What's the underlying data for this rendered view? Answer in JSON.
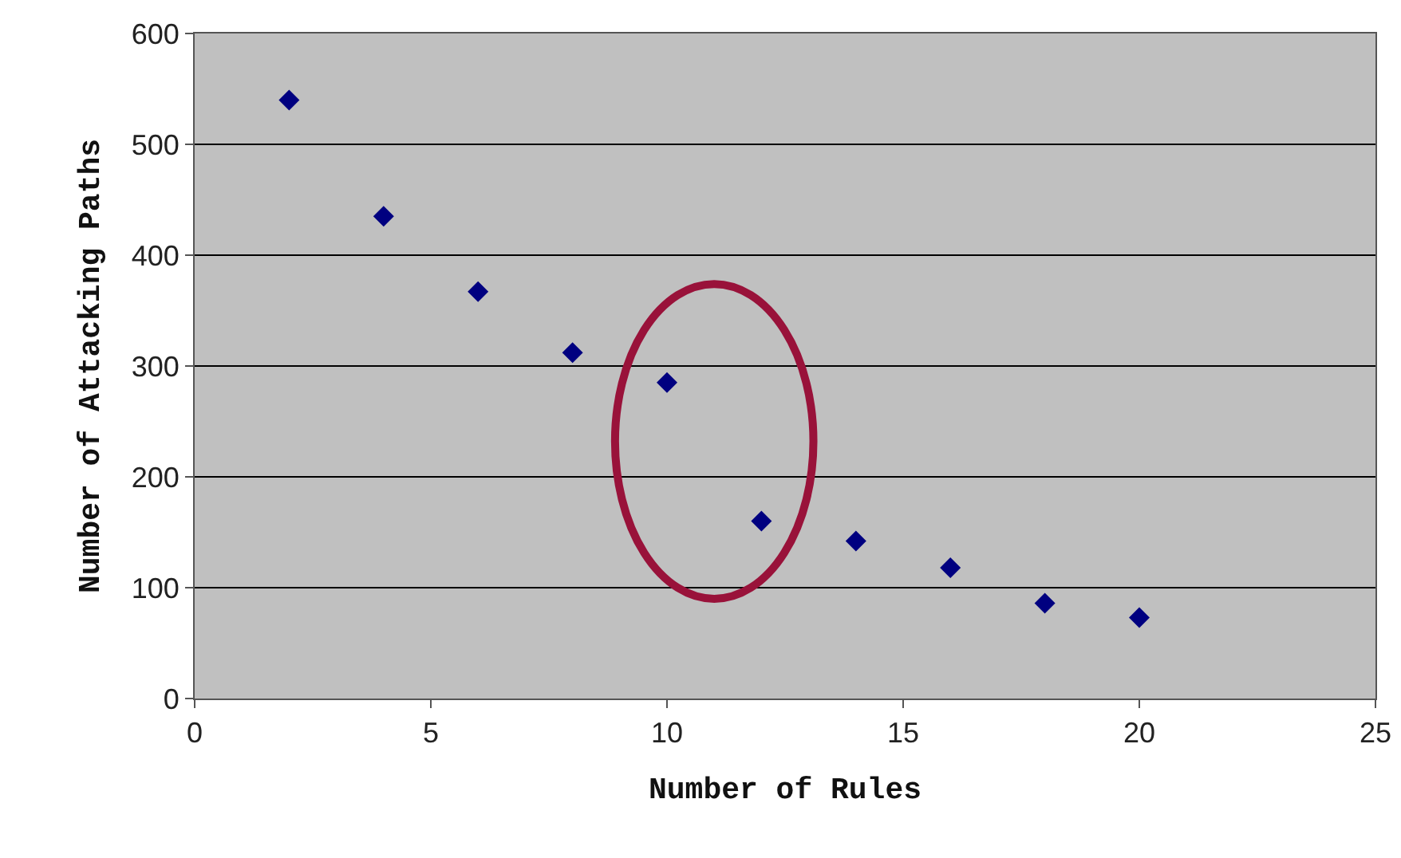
{
  "chart_data": {
    "type": "scatter",
    "xlabel": "Number of Rules",
    "ylabel": "Number of Attacking Paths",
    "x": [
      2,
      4,
      6,
      8,
      10,
      12,
      14,
      16,
      18,
      20
    ],
    "series": [
      {
        "color": "#000080",
        "values": [
          540,
          435,
          367,
          312,
          285,
          160,
          142,
          118,
          86,
          73
        ]
      }
    ],
    "xlim": [
      0,
      25
    ],
    "xticks": [
      0,
      5,
      10,
      15,
      20,
      25
    ],
    "ylim": [
      0,
      600
    ],
    "yticks": [
      0,
      100,
      200,
      300,
      400,
      500,
      600
    ],
    "grid": "y",
    "marker": "diamond"
  }
}
